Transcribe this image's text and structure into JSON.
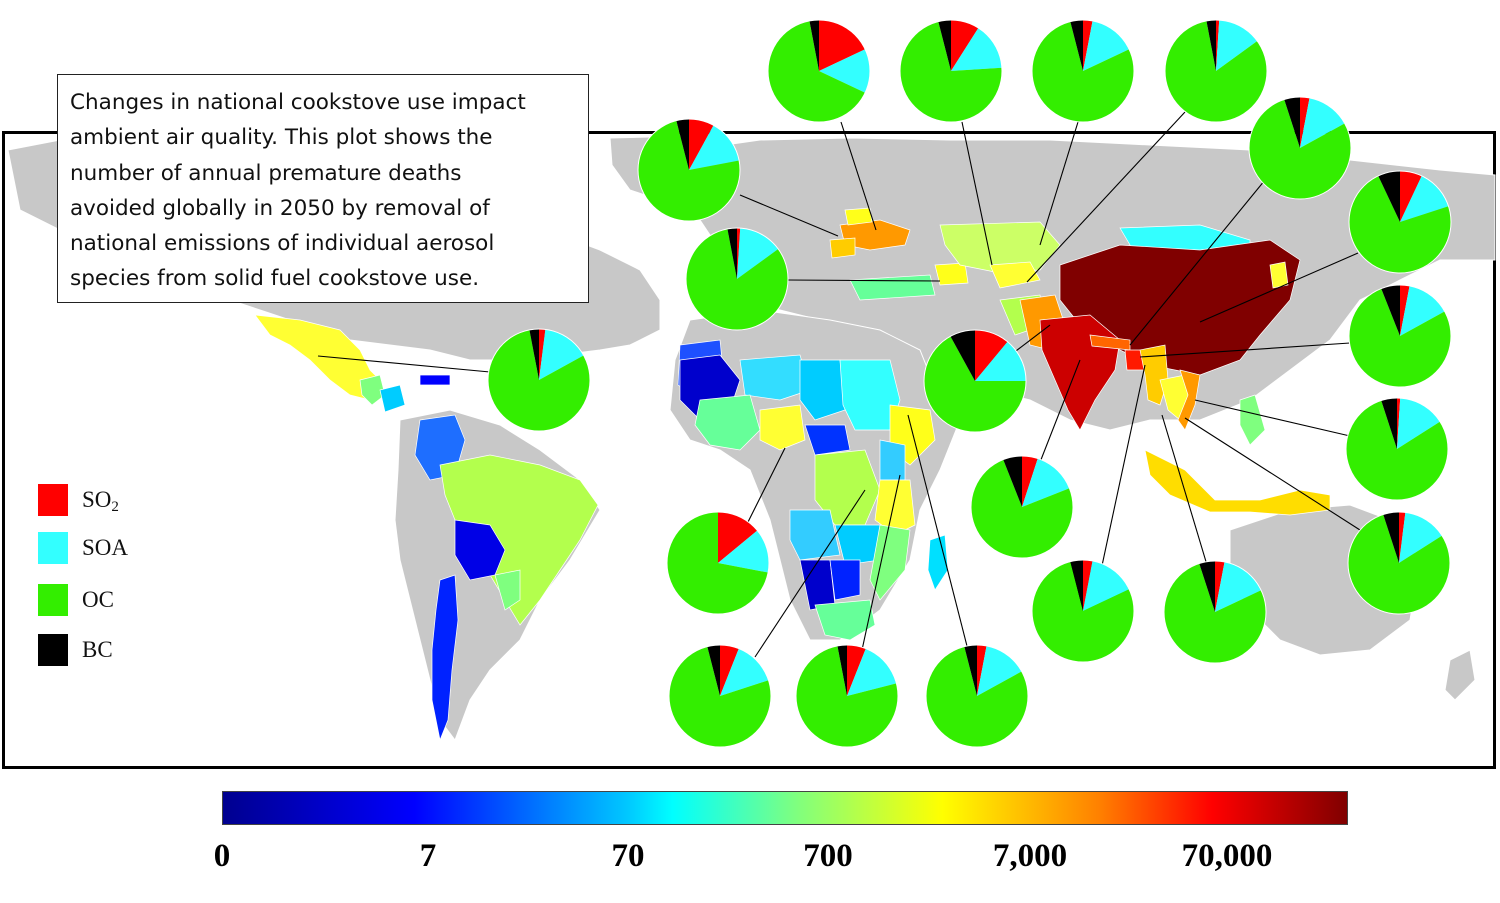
{
  "caption": {
    "lines": [
      "Changes in national cookstove use impact",
      "ambient air quality. This plot shows the",
      "number of annual premature deaths",
      "avoided globally in 2050 by removal of",
      "national emissions of individual aerosol",
      "species from solid fuel cookstove use."
    ]
  },
  "legend": {
    "items": [
      {
        "label": "SO",
        "sub": "2",
        "color": "#ff0000"
      },
      {
        "label": "SOA",
        "sub": "",
        "color": "#33ffff"
      },
      {
        "label": "OC",
        "sub": "",
        "color": "#33ee00"
      },
      {
        "label": "BC",
        "sub": "",
        "color": "#000000"
      }
    ]
  },
  "colorbar": {
    "ticks": [
      "0",
      "7",
      "70",
      "700",
      "7,000",
      "70,000"
    ],
    "colors": [
      "#00008f",
      "#0000ff",
      "#00ffff",
      "#7fff7f",
      "#ffff00",
      "#ff0000",
      "#800000"
    ]
  },
  "colors": {
    "land": "#c8c8c8",
    "so2": "#ff0000",
    "soa": "#33ffff",
    "oc": "#33ee00",
    "bc": "#000000"
  },
  "pie_fractions": [
    {
      "country": "Mexico",
      "bc": 0.03,
      "so2": 0.02,
      "soa": 0.15
    },
    {
      "country": "Ukraine",
      "bc": 0.04,
      "so2": 0.08,
      "soa": 0.14
    },
    {
      "country": "Turkey",
      "bc": 0.03,
      "so2": 0.01,
      "soa": 0.14
    },
    {
      "country": "Russia",
      "bc": 0.03,
      "so2": 0.18,
      "soa": 0.14
    },
    {
      "country": "Kazakhstan",
      "bc": 0.04,
      "so2": 0.09,
      "soa": 0.15
    },
    {
      "country": "Mongolia",
      "bc": 0.04,
      "so2": 0.03,
      "soa": 0.15
    },
    {
      "country": "Uzbekistan",
      "bc": 0.03,
      "so2": 0.01,
      "soa": 0.14
    },
    {
      "country": "Nepal",
      "bc": 0.05,
      "so2": 0.03,
      "soa": 0.14
    },
    {
      "country": "Korea",
      "bc": 0.07,
      "so2": 0.07,
      "soa": 0.13
    },
    {
      "country": "China",
      "bc": 0.06,
      "so2": 0.03,
      "soa": 0.14
    },
    {
      "country": "Pakistan",
      "bc": 0.08,
      "so2": 0.11,
      "soa": 0.14
    },
    {
      "country": "Vietnam",
      "bc": 0.05,
      "so2": 0.01,
      "soa": 0.15
    },
    {
      "country": "Philippines",
      "bc": 0.05,
      "so2": 0.02,
      "soa": 0.14
    },
    {
      "country": "India",
      "bc": 0.06,
      "so2": 0.05,
      "soa": 0.14
    },
    {
      "country": "Bangladesh",
      "bc": 0.07,
      "so2": 0.01,
      "soa": 0.16
    },
    {
      "country": "Myanmar",
      "bc": 0.04,
      "so2": 0.03,
      "soa": 0.15
    },
    {
      "country": "Indonesia",
      "bc": 0.05,
      "so2": 0.03,
      "soa": 0.15
    },
    {
      "country": "Nigeria",
      "bc": 0.0,
      "so2": 0.14,
      "soa": 0.14
    },
    {
      "country": "DR Congo",
      "bc": 0.04,
      "so2": 0.06,
      "soa": 0.14
    },
    {
      "country": "Tanzania",
      "bc": 0.03,
      "so2": 0.06,
      "soa": 0.15
    },
    {
      "country": "Ethiopia",
      "bc": 0.04,
      "so2": 0.03,
      "soa": 0.14
    }
  ]
}
